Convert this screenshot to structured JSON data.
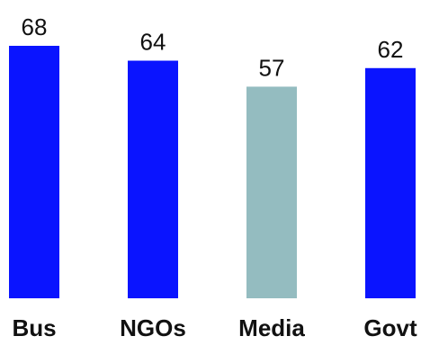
{
  "chart_data": {
    "type": "bar",
    "categories": [
      "Bus",
      "NGOs",
      "Media",
      "Govt"
    ],
    "values": [
      68,
      64,
      57,
      62
    ],
    "colors": [
      "#0a14ff",
      "#0a14ff",
      "#94bcc0",
      "#0a14ff"
    ],
    "ylim": [
      0,
      68
    ],
    "grid": false,
    "legend": "none"
  }
}
